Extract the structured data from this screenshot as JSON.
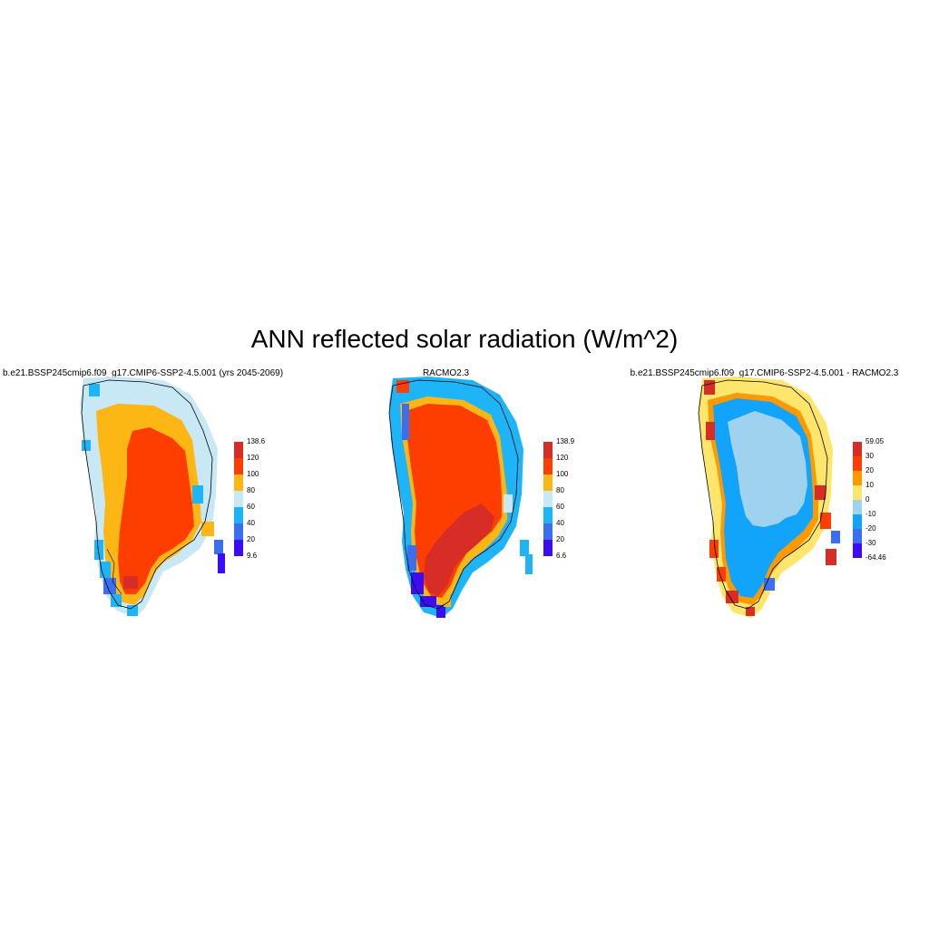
{
  "figure": {
    "title": "ANN reflected solar radiation (W/m^2)"
  },
  "panels": [
    {
      "title": "b.e21.BSSP245cmip6.f09_g17.CMIP6-SSP2-4.5.001 (yrs 2045-2069)",
      "colorbar": {
        "labels": [
          "138.6",
          "120",
          "100",
          "80",
          "60",
          "40",
          "20",
          "9.6"
        ],
        "colors": [
          "#d62e26",
          "#fe3d00",
          "#fdb714",
          "#c9e8f6",
          "#1eb4f8",
          "#3b6ef0",
          "#3c0cf4"
        ]
      }
    },
    {
      "title": "RACMO2.3",
      "colorbar": {
        "labels": [
          "138.9",
          "120",
          "100",
          "80",
          "60",
          "40",
          "20",
          "6.6"
        ],
        "colors": [
          "#d62e26",
          "#fe3d00",
          "#fdb714",
          "#c9e8f6",
          "#1eb4f8",
          "#3b6ef0",
          "#3c0cf4"
        ]
      }
    },
    {
      "title": "b.e21.BSSP245cmip6.f09_g17.CMIP6-SSP2-4.5.001 - RACMO2.3",
      "colorbar": {
        "labels": [
          "59.05",
          "30",
          "20",
          "10",
          "0",
          "-10",
          "-20",
          "-30",
          "-64.46"
        ],
        "colors": [
          "#d62e26",
          "#fe3d00",
          "#fe9a00",
          "#fde66b",
          "#9fd2ee",
          "#12a4fb",
          "#3b6ef0",
          "#3c0cf4"
        ]
      }
    }
  ]
}
